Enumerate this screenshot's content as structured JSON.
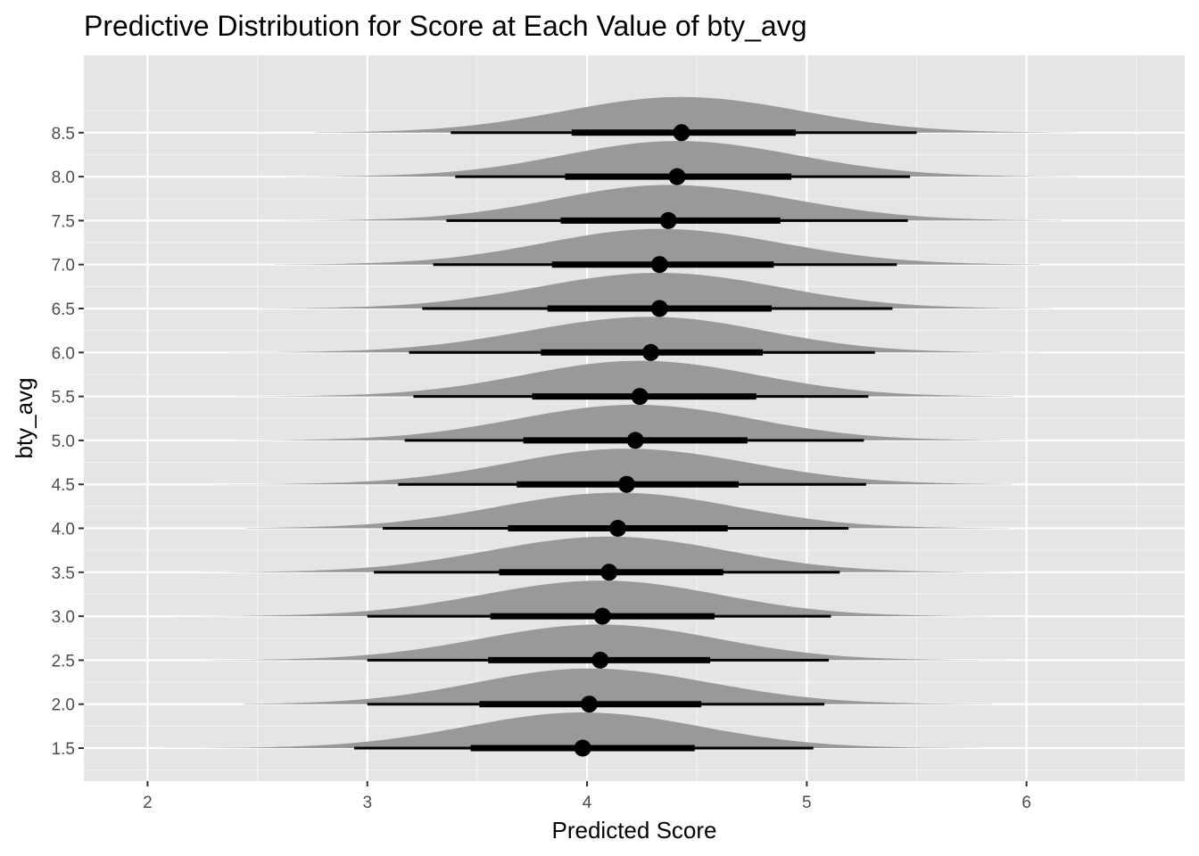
{
  "chart_data": {
    "type": "halfeye",
    "title": "Predictive Distribution for Score at Each Value of bty_avg",
    "xlabel": "Predicted Score",
    "ylabel": "bty_avg",
    "xlim": [
      1.71,
      6.72
    ],
    "x_ticks": [
      2,
      3,
      4,
      5,
      6
    ],
    "y_ticks": [
      1.5,
      2.0,
      2.5,
      3.0,
      3.5,
      4.0,
      4.5,
      5.0,
      5.5,
      6.0,
      6.5,
      7.0,
      7.5,
      8.0,
      8.5
    ],
    "y_tick_labels": [
      "1.5",
      "2.0",
      "2.5",
      "3.0",
      "3.5",
      "4.0",
      "4.5",
      "5.0",
      "5.5",
      "6.0",
      "6.5",
      "7.0",
      "7.5",
      "8.0",
      "8.5"
    ],
    "grid": true,
    "colors": {
      "panel_bg": "#e5e5e5",
      "grid": "#ffffff",
      "density_fill": "#999999",
      "interval": "#000000",
      "point": "#000000"
    },
    "series": [
      {
        "bty_avg": 1.5,
        "median": 3.98,
        "interval_66": [
          3.47,
          4.49
        ],
        "interval_95": [
          2.94,
          5.03
        ],
        "density_range": [
          2.05,
          5.8
        ]
      },
      {
        "bty_avg": 2.0,
        "median": 4.01,
        "interval_66": [
          3.51,
          4.52
        ],
        "interval_95": [
          3.0,
          5.08
        ],
        "density_range": [
          2.44,
          5.84
        ]
      },
      {
        "bty_avg": 2.5,
        "median": 4.06,
        "interval_66": [
          3.55,
          4.56
        ],
        "interval_95": [
          3.0,
          5.1
        ],
        "density_range": [
          2.26,
          5.96
        ]
      },
      {
        "bty_avg": 3.0,
        "median": 4.07,
        "interval_66": [
          3.56,
          4.58
        ],
        "interval_95": [
          3.0,
          5.11
        ],
        "density_range": [
          2.12,
          6.0
        ]
      },
      {
        "bty_avg": 3.5,
        "median": 4.1,
        "interval_66": [
          3.6,
          4.62
        ],
        "interval_95": [
          3.03,
          5.15
        ],
        "density_range": [
          2.1,
          6.04
        ]
      },
      {
        "bty_avg": 4.0,
        "median": 4.14,
        "interval_66": [
          3.64,
          4.64
        ],
        "interval_95": [
          3.07,
          5.19
        ],
        "density_range": [
          2.45,
          5.92
        ]
      },
      {
        "bty_avg": 4.5,
        "median": 4.18,
        "interval_66": [
          3.68,
          4.69
        ],
        "interval_95": [
          3.14,
          5.27
        ],
        "density_range": [
          2.3,
          5.93
        ]
      },
      {
        "bty_avg": 5.0,
        "median": 4.22,
        "interval_66": [
          3.71,
          4.73
        ],
        "interval_95": [
          3.17,
          5.26
        ],
        "density_range": [
          2.4,
          6.0
        ]
      },
      {
        "bty_avg": 5.5,
        "median": 4.24,
        "interval_66": [
          3.75,
          4.77
        ],
        "interval_95": [
          3.21,
          5.28
        ],
        "density_range": [
          2.4,
          5.94
        ]
      },
      {
        "bty_avg": 6.0,
        "median": 4.29,
        "interval_66": [
          3.79,
          4.8
        ],
        "interval_95": [
          3.19,
          5.31
        ],
        "density_range": [
          2.35,
          6.05
        ]
      },
      {
        "bty_avg": 6.5,
        "median": 4.33,
        "interval_66": [
          3.82,
          4.84
        ],
        "interval_95": [
          3.25,
          5.39
        ],
        "density_range": [
          2.5,
          6.12
        ]
      },
      {
        "bty_avg": 7.0,
        "median": 4.33,
        "interval_66": [
          3.84,
          4.85
        ],
        "interval_95": [
          3.3,
          5.41
        ],
        "density_range": [
          2.58,
          6.06
        ]
      },
      {
        "bty_avg": 7.5,
        "median": 4.37,
        "interval_66": [
          3.88,
          4.88
        ],
        "interval_95": [
          3.36,
          5.46
        ],
        "density_range": [
          2.6,
          6.16
        ]
      },
      {
        "bty_avg": 8.0,
        "median": 4.41,
        "interval_66": [
          3.9,
          4.93
        ],
        "interval_95": [
          3.4,
          5.47
        ],
        "density_range": [
          2.63,
          6.23
        ]
      },
      {
        "bty_avg": 8.5,
        "median": 4.43,
        "interval_66": [
          3.93,
          4.95
        ],
        "interval_95": [
          3.38,
          5.5
        ],
        "density_range": [
          2.76,
          6.22
        ]
      }
    ]
  }
}
